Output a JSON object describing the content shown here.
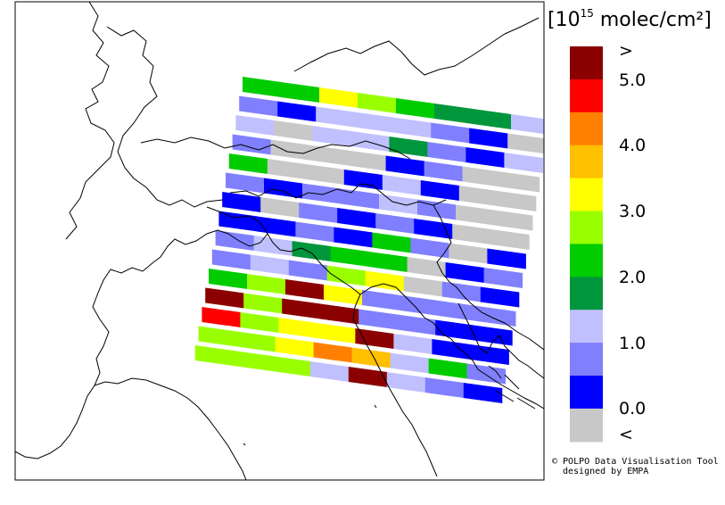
{
  "legend": {
    "title_open": "[10",
    "title_sup": "15",
    "title_rest": " molec/cm²]",
    "labels": [
      ">",
      "5.0",
      "4.0",
      "3.0",
      "2.0",
      "1.0",
      "0.0",
      "<"
    ],
    "colors": [
      "#8b0000",
      "#ff0000",
      "#ff8000",
      "#ffc000",
      "#ffff00",
      "#99ff00",
      "#00cc00",
      "#00963c",
      "#c0c0ff",
      "#8080ff",
      "#0000ff",
      "#c8c8c8"
    ]
  },
  "credit": {
    "line1": "© POLPO Data Visualisation Tool",
    "line2": "designed by EMPA"
  },
  "swaths": [
    [
      6,
      6,
      4,
      5,
      6,
      7,
      7,
      8
    ],
    [
      9,
      10,
      8,
      8,
      8,
      9,
      10,
      11
    ],
    [
      8,
      11,
      8,
      8,
      7,
      9,
      10,
      8
    ],
    [
      9,
      11,
      11,
      11,
      10,
      9,
      11,
      11
    ],
    [
      6,
      11,
      11,
      10,
      8,
      10,
      11,
      11
    ],
    [
      9,
      10,
      9,
      9,
      8,
      9,
      11,
      11
    ],
    [
      10,
      11,
      9,
      10,
      9,
      10,
      11,
      11
    ],
    [
      10,
      10,
      9,
      10,
      6,
      9,
      11,
      10
    ],
    [
      9,
      8,
      7,
      6,
      6,
      11,
      10,
      9
    ],
    [
      9,
      8,
      9,
      5,
      4,
      11,
      9,
      10
    ],
    [
      6,
      5,
      0,
      4,
      9,
      9,
      9,
      9
    ],
    [
      0,
      5,
      0,
      0,
      9,
      9,
      10,
      10
    ],
    [
      1,
      5,
      4,
      4,
      0,
      8,
      10,
      10
    ],
    [
      5,
      5,
      4,
      2,
      3,
      8,
      6,
      9
    ],
    [
      5,
      5,
      5,
      8,
      0,
      8,
      9,
      10
    ]
  ]
}
